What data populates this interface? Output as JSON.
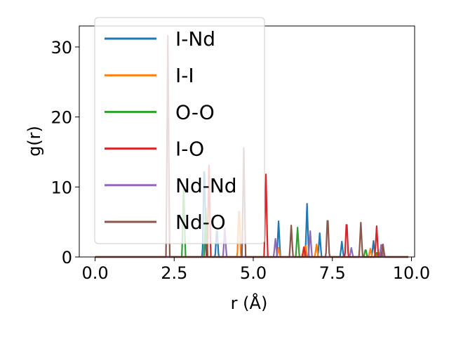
{
  "chart_data": {
    "type": "line",
    "title": "",
    "xlabel": "r (Å)",
    "ylabel": "g(r)",
    "xlim": [
      -0.5,
      10.1
    ],
    "ylim": [
      0,
      33
    ],
    "xticks": [
      0.0,
      2.5,
      5.0,
      7.5,
      10.0
    ],
    "xtick_labels": [
      "0.0",
      "2.5",
      "5.0",
      "7.5",
      "10.0"
    ],
    "yticks": [
      0,
      10,
      20,
      30
    ],
    "ytick_labels": [
      "0",
      "10",
      "20",
      "30"
    ],
    "grid": false,
    "legend_position": "upper-left",
    "series": [
      {
        "name": "I-Nd",
        "color": "#1f77b4",
        "peaks": [
          [
            3.45,
            14.8
          ],
          [
            3.85,
            4.5
          ],
          [
            5.8,
            5.1
          ],
          [
            6.7,
            7.6
          ],
          [
            7.1,
            3.4
          ],
          [
            7.8,
            2.2
          ],
          [
            8.8,
            2.3
          ]
        ]
      },
      {
        "name": "I-I",
        "color": "#ff7f0e",
        "peaks": [
          [
            4.55,
            7.9
          ],
          [
            5.8,
            1.3
          ],
          [
            6.65,
            1.9
          ],
          [
            7.0,
            1.8
          ],
          [
            8.7,
            1.2
          ],
          [
            8.95,
            0.8
          ]
        ]
      },
      {
        "name": "O-O",
        "color": "#2ca02c",
        "peaks": [
          [
            2.8,
            10.0
          ],
          [
            3.5,
            7.0
          ],
          [
            6.4,
            4.2
          ],
          [
            8.55,
            1.2
          ],
          [
            8.9,
            0.6
          ]
        ]
      },
      {
        "name": "I-O",
        "color": "#d62728",
        "peaks": [
          [
            3.6,
            13.1
          ],
          [
            5.4,
            11.8
          ],
          [
            6.6,
            1.4
          ],
          [
            7.95,
            5.6
          ],
          [
            8.9,
            4.4
          ],
          [
            9.05,
            0.8
          ]
        ]
      },
      {
        "name": "Nd-Nd",
        "color": "#9467bd",
        "peaks": [
          [
            4.1,
            4.1
          ],
          [
            5.7,
            2.6
          ],
          [
            6.8,
            3.7
          ],
          [
            8.1,
            1.3
          ],
          [
            9.05,
            2.1
          ]
        ]
      },
      {
        "name": "Nd-O",
        "color": "#8c564b",
        "peaks": [
          [
            2.3,
            31.6
          ],
          [
            4.7,
            15.6
          ],
          [
            6.2,
            4.5
          ],
          [
            7.35,
            6.3
          ],
          [
            8.4,
            4.9
          ],
          [
            9.1,
            1.8
          ]
        ]
      }
    ]
  }
}
